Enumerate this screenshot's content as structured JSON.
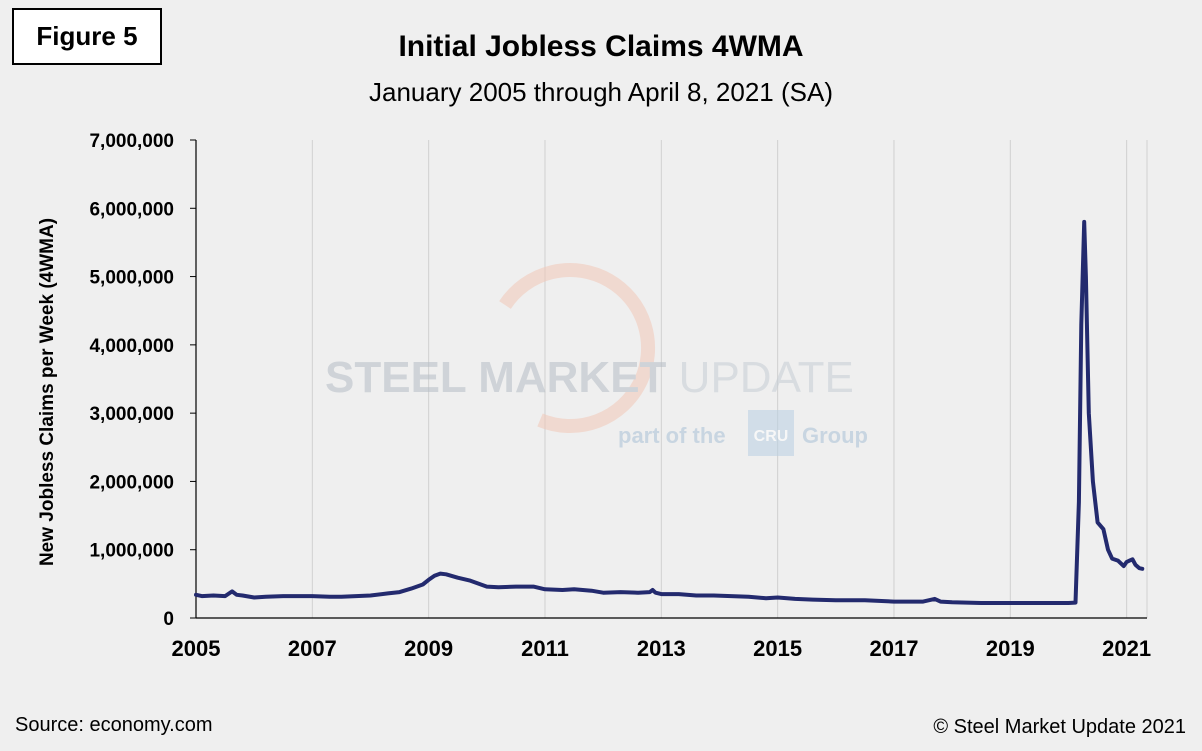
{
  "figure_label": "Figure 5",
  "source": "Source: economy.com",
  "copyright": "© Steel Market Update 2021",
  "watermark": {
    "main_bold": "STEEL MARKET",
    "main_light": "UPDATE",
    "sub_before": "part of the",
    "sub_logo": "CRU",
    "sub_after": "Group"
  },
  "colors": {
    "line": "#232a6e",
    "grid": "#d0d0d0",
    "background": "#efefef"
  },
  "chart_data": {
    "type": "line",
    "title": "Initial Jobless Claims 4WMA",
    "subtitle": "January 2005 through April 8, 2021 (SA)",
    "xlabel": "",
    "ylabel": "New Jobless Claims per Week (4WMA)",
    "xlim": [
      2005,
      2021.35
    ],
    "ylim": [
      0,
      7000000
    ],
    "x_ticks": [
      2005,
      2007,
      2009,
      2011,
      2013,
      2015,
      2017,
      2019,
      2021
    ],
    "x_tick_labels": [
      "2005",
      "2007",
      "2009",
      "2011",
      "2013",
      "2015",
      "2017",
      "2019",
      "2021"
    ],
    "y_ticks": [
      0,
      1000000,
      2000000,
      3000000,
      4000000,
      5000000,
      6000000,
      7000000
    ],
    "y_tick_labels": [
      "0",
      "1,000,000",
      "2,000,000",
      "3,000,000",
      "4,000,000",
      "5,000,000",
      "6,000,000",
      "7,000,000"
    ],
    "grid": "vertical",
    "legend": "none",
    "series": [
      {
        "x": [
          2005.0,
          2005.1,
          2005.3,
          2005.5,
          2005.62,
          2005.7,
          2005.8,
          2006.0,
          2006.2,
          2006.5,
          2007.0,
          2007.3,
          2007.5,
          2008.0,
          2008.3,
          2008.5,
          2008.7,
          2008.9,
          2009.0,
          2009.1,
          2009.2,
          2009.3,
          2009.5,
          2009.7,
          2010.0,
          2010.2,
          2010.5,
          2010.8,
          2011.0,
          2011.3,
          2011.5,
          2011.8,
          2012.0,
          2012.3,
          2012.6,
          2012.8,
          2012.85,
          2012.9,
          2013.0,
          2013.3,
          2013.6,
          2013.9,
          2014.2,
          2014.5,
          2014.8,
          2015.0,
          2015.3,
          2015.6,
          2016.0,
          2016.5,
          2017.0,
          2017.5,
          2017.7,
          2017.8,
          2018.0,
          2018.5,
          2019.0,
          2019.5,
          2020.0,
          2020.12,
          2020.18,
          2020.22,
          2020.27,
          2020.3,
          2020.35,
          2020.42,
          2020.5,
          2020.6,
          2020.68,
          2020.75,
          2020.85,
          2020.95,
          2021.0,
          2021.05,
          2021.1,
          2021.15,
          2021.22,
          2021.27
        ],
        "y": [
          340000,
          320000,
          330000,
          320000,
          390000,
          340000,
          330000,
          300000,
          310000,
          320000,
          320000,
          310000,
          310000,
          330000,
          360000,
          380000,
          430000,
          490000,
          560000,
          620000,
          650000,
          640000,
          590000,
          550000,
          460000,
          450000,
          460000,
          460000,
          420000,
          410000,
          420000,
          400000,
          370000,
          380000,
          370000,
          380000,
          410000,
          370000,
          350000,
          350000,
          330000,
          330000,
          320000,
          310000,
          290000,
          300000,
          280000,
          270000,
          260000,
          260000,
          240000,
          240000,
          280000,
          240000,
          230000,
          220000,
          220000,
          220000,
          220000,
          225000,
          1700000,
          4300000,
          5800000,
          5000000,
          3000000,
          2000000,
          1400000,
          1300000,
          1000000,
          870000,
          840000,
          760000,
          820000,
          840000,
          860000,
          780000,
          730000,
          720000
        ]
      }
    ]
  }
}
